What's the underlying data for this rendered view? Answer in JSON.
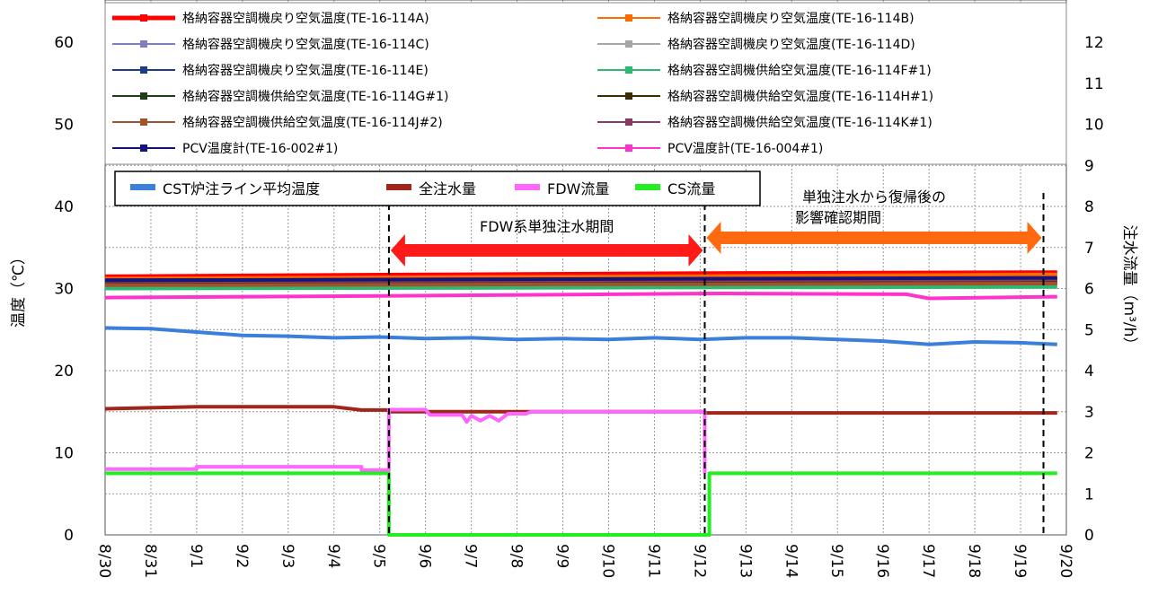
{
  "chart_data": {
    "type": "line",
    "x_labels": [
      "8/30",
      "8/31",
      "9/1",
      "9/2",
      "9/3",
      "9/4",
      "9/5",
      "9/6",
      "9/7",
      "9/8",
      "9/9",
      "9/10",
      "9/11",
      "9/12",
      "9/13",
      "9/14",
      "9/15",
      "9/16",
      "9/17",
      "9/18",
      "9/19",
      "9/20"
    ],
    "y_left": {
      "label": "温度（℃）",
      "min": 0,
      "max": 60,
      "ticks": [
        0,
        10,
        20,
        30,
        40,
        50,
        60
      ]
    },
    "y_right": {
      "label": "注水流量（m³/h）",
      "min": 0,
      "max": 12,
      "ticks": [
        0,
        1,
        2,
        3,
        4,
        5,
        6,
        7,
        8,
        9,
        10,
        11,
        12
      ]
    },
    "grid": true,
    "legend_top": [
      {
        "name": "格納容器空調機戻り空気温度(TE-16-114A)",
        "color": "#FF0000"
      },
      {
        "name": "格納容器空調機戻り空気温度(TE-16-114B)",
        "color": "#FF6A00"
      },
      {
        "name": "格納容器空調機戻り空気温度(TE-16-114C)",
        "color": "#7F7FBF"
      },
      {
        "name": "格納容器空調機戻り空気温度(TE-16-114D)",
        "color": "#A6A6A6"
      },
      {
        "name": "格納容器空調機戻り空気温度(TE-16-114E)",
        "color": "#1F3C88"
      },
      {
        "name": "格納容器空調機供給空気温度(TE-16-114F#1)",
        "color": "#2EB872"
      },
      {
        "name": "格納容器空調機供給空気温度(TE-16-114G#1)",
        "color": "#1E3D14"
      },
      {
        "name": "格納容器空調機供給空気温度(TE-16-114H#1)",
        "color": "#3A2E00"
      },
      {
        "name": "格納容器空調機供給空気温度(TE-16-114J#2)",
        "color": "#A0522D"
      },
      {
        "name": "格納容器空調機供給空気温度(TE-16-114K#1)",
        "color": "#8B3A62"
      },
      {
        "name": "PCV温度計(TE-16-002#1)",
        "color": "#14147A"
      },
      {
        "name": "PCV温度計(TE-16-004#1)",
        "color": "#FF33CC"
      }
    ],
    "legend_inner": [
      {
        "name": "CST炉注ライン平均温度",
        "color": "#3A7FDA"
      },
      {
        "name": "全注水量",
        "color": "#A0251A"
      },
      {
        "name": "FDW流量",
        "color": "#FF66FF"
      },
      {
        "name": "CS流量",
        "color": "#22EE22"
      }
    ],
    "series": [
      {
        "name": "格納容器空調機戻り空気温度(TE-16-114A)",
        "axis": "left",
        "color": "#FF0000",
        "points": [
          [
            0,
            31.5
          ],
          [
            6.5,
            31.7
          ],
          [
            14,
            31.9
          ],
          [
            20.8,
            32.0
          ]
        ]
      },
      {
        "name": "格納容器空調機戻り空気温度(TE-16-114B)",
        "axis": "left",
        "color": "#FF6A00",
        "points": [
          [
            0,
            31.2
          ],
          [
            20.8,
            31.7
          ]
        ]
      },
      {
        "name": "格納容器空調機戻り空気温度(TE-16-114C)",
        "axis": "left",
        "color": "#7F7FBF",
        "points": [
          [
            0,
            30.8
          ],
          [
            20.8,
            31.3
          ]
        ]
      },
      {
        "name": "格納容器空調機戻り空気温度(TE-16-114D)",
        "axis": "left",
        "color": "#A6A6A6",
        "points": [
          [
            0,
            30.3
          ],
          [
            20.8,
            30.6
          ]
        ]
      },
      {
        "name": "格納容器空調機戻り空気温度(TE-16-114E)",
        "axis": "left",
        "color": "#1F3C88",
        "points": [
          [
            0,
            31.0
          ],
          [
            20.8,
            31.2
          ]
        ]
      },
      {
        "name": "格納容器空調機供給空気温度(TE-16-114F#1)",
        "axis": "left",
        "color": "#2EB872",
        "points": [
          [
            0,
            30.0
          ],
          [
            20.8,
            30.2
          ]
        ]
      },
      {
        "name": "格納容器空調機供給空気温度(TE-16-114G#1)",
        "axis": "left",
        "color": "#1E3D14",
        "points": [
          [
            0,
            30.5
          ],
          [
            20.8,
            30.7
          ]
        ]
      },
      {
        "name": "格納容器空調機供給空気温度(TE-16-114H#1)",
        "axis": "left",
        "color": "#3A2E00",
        "points": [
          [
            0,
            30.7
          ],
          [
            20.8,
            30.9
          ]
        ]
      },
      {
        "name": "格納容器空調機供給空気温度(TE-16-114J#2)",
        "axis": "left",
        "color": "#A0522D",
        "points": [
          [
            0,
            30.4
          ],
          [
            20.8,
            30.6
          ]
        ]
      },
      {
        "name": "格納容器空調機供給空気温度(TE-16-114K#1)",
        "axis": "left",
        "color": "#8B3A62",
        "points": [
          [
            0,
            30.9
          ],
          [
            20.8,
            31.1
          ]
        ]
      },
      {
        "name": "PCV温度計(TE-16-002#1)",
        "axis": "left",
        "color": "#14147A",
        "points": [
          [
            0,
            31.0
          ],
          [
            20.8,
            31.3
          ]
        ]
      },
      {
        "name": "PCV温度計(TE-16-004#1)",
        "axis": "left",
        "color": "#FF33CC",
        "points": [
          [
            0,
            28.9
          ],
          [
            6,
            29.1
          ],
          [
            13.5,
            29.4
          ],
          [
            17.5,
            29.3
          ],
          [
            18,
            28.8
          ],
          [
            20.8,
            29.0
          ]
        ]
      },
      {
        "name": "CST炉注ライン平均温度",
        "axis": "left",
        "color": "#3A7FDA",
        "points": [
          [
            0,
            25.2
          ],
          [
            1,
            25.1
          ],
          [
            2,
            24.7
          ],
          [
            3,
            24.3
          ],
          [
            4,
            24.2
          ],
          [
            5,
            24.0
          ],
          [
            6,
            24.1
          ],
          [
            7,
            23.9
          ],
          [
            8,
            24.0
          ],
          [
            9,
            23.8
          ],
          [
            10,
            23.9
          ],
          [
            11,
            23.8
          ],
          [
            12,
            24.0
          ],
          [
            13,
            23.8
          ],
          [
            14,
            24.0
          ],
          [
            15,
            24.0
          ],
          [
            16,
            23.8
          ],
          [
            17,
            23.6
          ],
          [
            18,
            23.2
          ],
          [
            19,
            23.5
          ],
          [
            20,
            23.4
          ],
          [
            20.8,
            23.2
          ]
        ]
      },
      {
        "name": "全注水量",
        "axis": "right",
        "color": "#A0251A",
        "points": [
          [
            0,
            3.07
          ],
          [
            2,
            3.12
          ],
          [
            3,
            3.12
          ],
          [
            5,
            3.12
          ],
          [
            5.6,
            3.04
          ],
          [
            6.2,
            3.04
          ],
          [
            6.2,
            3.0
          ],
          [
            7,
            3.0
          ],
          [
            13.1,
            3.0
          ],
          [
            13.1,
            2.97
          ],
          [
            20.8,
            2.97
          ]
        ]
      },
      {
        "name": "FDW流量",
        "axis": "right",
        "color": "#FF66FF",
        "points": [
          [
            0,
            1.6
          ],
          [
            2,
            1.6
          ],
          [
            2,
            1.66
          ],
          [
            5.6,
            1.66
          ],
          [
            5.6,
            1.58
          ],
          [
            6.2,
            1.58
          ],
          [
            6.2,
            3.05
          ],
          [
            7,
            3.05
          ],
          [
            7.1,
            2.92
          ],
          [
            7.8,
            2.92
          ],
          [
            7.9,
            2.75
          ],
          [
            8,
            2.9
          ],
          [
            8.2,
            2.78
          ],
          [
            8.4,
            2.9
          ],
          [
            8.6,
            2.78
          ],
          [
            8.8,
            2.95
          ],
          [
            9.2,
            2.95
          ],
          [
            9.3,
            3.0
          ],
          [
            13.1,
            3.0
          ],
          [
            13.1,
            1.5
          ]
        ]
      },
      {
        "name": "CS流量",
        "axis": "right",
        "color": "#22EE22",
        "points": [
          [
            0,
            1.5
          ],
          [
            6.2,
            1.5
          ],
          [
            6.2,
            0
          ],
          [
            13.2,
            0
          ],
          [
            13.2,
            1.5
          ],
          [
            20.8,
            1.5
          ]
        ]
      }
    ],
    "period_markers": [
      6.2,
      13.1,
      20.5
    ],
    "annotations": [
      {
        "text": "FDW系単独注水期間",
        "from": 6.2,
        "to": 13.1,
        "color": "#FF1A1A"
      },
      {
        "text_line1": "単独注水から復帰後の",
        "text_line2": "影響確認期間",
        "from": 13.1,
        "to": 20.5,
        "color": "#FF6A10"
      }
    ]
  }
}
